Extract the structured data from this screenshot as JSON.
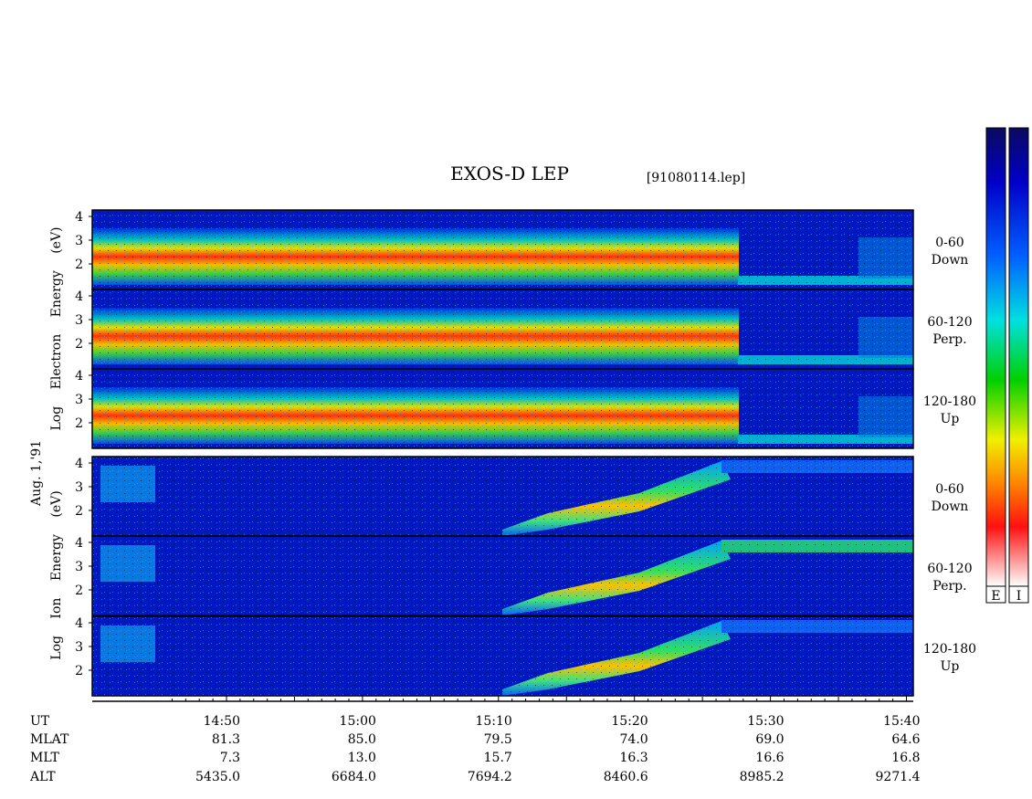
{
  "title": "EXOS-D LEP",
  "file": "[91080114.lep]",
  "electron_label": "Log  Electron  Energy (eV)",
  "date": "Aug. 1,'91",
  "ion_label": "Log  Ion  Energy (eV)",
  "panels": [
    {
      "ticks": [
        "2",
        "3",
        "4"
      ],
      "angle": "0-60",
      "direction": "Down"
    },
    {
      "ticks": [
        "2",
        "3",
        "4"
      ],
      "angle": "60-120",
      "direction": "Perp."
    },
    {
      "ticks": [
        "2",
        "3",
        "4"
      ],
      "angle": "120-180",
      "direction": "Up"
    },
    {
      "ticks": [
        "2",
        "3",
        "4"
      ],
      "angle": "0-60",
      "direction": "Down"
    },
    {
      "ticks": [
        "2",
        "3",
        "4"
      ],
      "angle": "60-120",
      "direction": "Perp."
    },
    {
      "ticks": [
        "2",
        "3",
        "4"
      ],
      "angle": "120-180",
      "direction": "Up"
    }
  ],
  "colorbar_labels": [
    "E",
    "I"
  ],
  "orbit": {
    "rows": [
      [
        "UT",
        "14:50",
        "15:00",
        "15:10",
        "15:20",
        "15:30",
        "15:40"
      ],
      [
        "MLAT",
        "81.3",
        "85.0",
        "79.5",
        "74.0",
        "69.0",
        "64.6"
      ],
      [
        "MLT",
        "7.3",
        "13.0",
        "15.7",
        "16.3",
        "16.6",
        "16.8"
      ],
      [
        "ALT",
        "5435.0",
        "6684.0",
        "7694.2",
        "8460.6",
        "8985.2",
        "9271.4"
      ]
    ]
  }
}
